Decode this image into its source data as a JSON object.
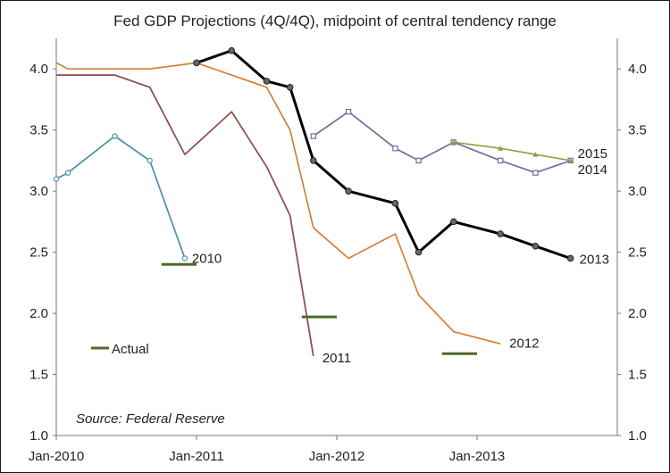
{
  "chart_data": {
    "type": "line",
    "title": "Fed GDP Projections (4Q/4Q), midpoint of central tendency range",
    "source_note": "Source: Federal Reserve",
    "xlabel": "",
    "ylabel": "",
    "x_ticks": [
      "Jan-2010",
      "Jan-2011",
      "Jan-2012",
      "Jan-2013"
    ],
    "y_ticks": [
      "1.0",
      "1.5",
      "2.0",
      "2.5",
      "3.0",
      "3.5",
      "4.0"
    ],
    "ylim": [
      1.0,
      4.25
    ],
    "xlim": [
      "2010-01",
      "2013-12"
    ],
    "grid": false,
    "dual_y_axis": true,
    "series": [
      {
        "name": "2010",
        "color": "#4a8fa8",
        "marker": "circle-open",
        "points": [
          [
            "2010-01",
            3.1
          ],
          [
            "2010-02",
            3.15
          ],
          [
            "2010-06",
            3.45
          ],
          [
            "2010-09",
            3.25
          ],
          [
            "2010-12",
            2.45
          ]
        ]
      },
      {
        "name": "2011",
        "color": "#8b4a4a",
        "marker": "none",
        "points": [
          [
            "2010-01",
            3.95
          ],
          [
            "2010-06",
            3.95
          ],
          [
            "2010-09",
            3.85
          ],
          [
            "2010-12",
            3.3
          ],
          [
            "2011-04",
            3.65
          ],
          [
            "2011-07",
            3.2
          ],
          [
            "2011-09",
            2.8
          ],
          [
            "2011-11",
            1.65
          ]
        ]
      },
      {
        "name": "2012",
        "color": "#d4803a",
        "marker": "none",
        "points": [
          [
            "2010-01",
            4.05
          ],
          [
            "2010-02",
            4.0
          ],
          [
            "2010-06",
            4.0
          ],
          [
            "2010-09",
            4.0
          ],
          [
            "2011-01",
            4.05
          ],
          [
            "2011-04",
            3.95
          ],
          [
            "2011-07",
            3.85
          ],
          [
            "2011-09",
            3.5
          ],
          [
            "2011-11",
            2.7
          ],
          [
            "2012-02",
            2.45
          ],
          [
            "2012-06",
            2.65
          ],
          [
            "2012-08",
            2.15
          ],
          [
            "2012-11",
            1.85
          ],
          [
            "2013-03",
            1.75
          ]
        ]
      },
      {
        "name": "2013",
        "color": "#000000",
        "marker": "circle",
        "points": [
          [
            "2011-01",
            4.05
          ],
          [
            "2011-04",
            4.15
          ],
          [
            "2011-07",
            3.9
          ],
          [
            "2011-09",
            3.85
          ],
          [
            "2011-11",
            3.25
          ],
          [
            "2012-02",
            3.0
          ],
          [
            "2012-06",
            2.9
          ],
          [
            "2012-08",
            2.5
          ],
          [
            "2012-11",
            2.75
          ],
          [
            "2013-03",
            2.65
          ],
          [
            "2013-06",
            2.55
          ],
          [
            "2013-09",
            2.45
          ]
        ]
      },
      {
        "name": "2014",
        "color": "#7b6a9a",
        "marker": "square-open",
        "points": [
          [
            "2011-11",
            3.45
          ],
          [
            "2012-02",
            3.65
          ],
          [
            "2012-06",
            3.35
          ],
          [
            "2012-08",
            3.25
          ],
          [
            "2012-11",
            3.4
          ],
          [
            "2013-03",
            3.25
          ],
          [
            "2013-06",
            3.15
          ],
          [
            "2013-09",
            3.25
          ]
        ]
      },
      {
        "name": "2015",
        "color": "#8aa04a",
        "marker": "triangle",
        "points": [
          [
            "2012-11",
            3.4
          ],
          [
            "2013-03",
            3.35
          ],
          [
            "2013-06",
            3.3
          ],
          [
            "2013-09",
            3.25
          ]
        ]
      }
    ],
    "actuals": {
      "legend_label": "Actual",
      "color": "#4f6a28",
      "items": [
        {
          "year": "2010",
          "value": 2.4,
          "x_start": "2010-10",
          "x_end": "2011-01"
        },
        {
          "year": "2011",
          "value": 1.97,
          "x_start": "2011-10",
          "x_end": "2012-01"
        },
        {
          "year": "2012",
          "value": 1.67,
          "x_start": "2012-10",
          "x_end": "2013-01"
        }
      ]
    }
  }
}
